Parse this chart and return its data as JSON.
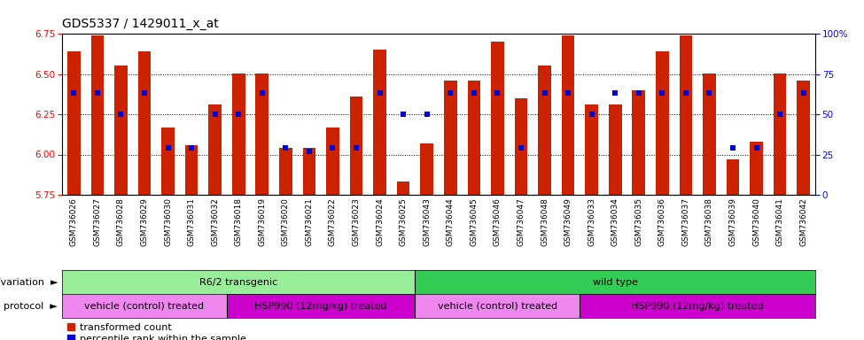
{
  "title": "GDS5337 / 1429011_x_at",
  "samples": [
    "GSM736026",
    "GSM736027",
    "GSM736028",
    "GSM736029",
    "GSM736030",
    "GSM736031",
    "GSM736032",
    "GSM736018",
    "GSM736019",
    "GSM736020",
    "GSM736021",
    "GSM736022",
    "GSM736023",
    "GSM736024",
    "GSM736025",
    "GSM736043",
    "GSM736044",
    "GSM736045",
    "GSM736046",
    "GSM736047",
    "GSM736048",
    "GSM736049",
    "GSM736033",
    "GSM736034",
    "GSM736035",
    "GSM736036",
    "GSM736037",
    "GSM736038",
    "GSM736039",
    "GSM736040",
    "GSM736041",
    "GSM736042"
  ],
  "transformed_count": [
    6.64,
    6.74,
    6.55,
    6.64,
    6.17,
    6.06,
    6.31,
    6.5,
    6.5,
    6.04,
    6.04,
    6.17,
    6.36,
    6.65,
    5.83,
    6.07,
    6.46,
    6.46,
    6.7,
    6.35,
    6.55,
    6.74,
    6.31,
    6.31,
    6.4,
    6.64,
    6.74,
    6.5,
    5.97,
    6.08,
    6.5,
    6.46
  ],
  "percentile_rank": [
    63,
    63,
    50,
    63,
    29,
    29,
    50,
    50,
    63,
    29,
    27,
    29,
    29,
    63,
    50,
    50,
    63,
    63,
    63,
    29,
    63,
    63,
    50,
    63,
    63,
    63,
    63,
    63,
    29,
    29,
    50,
    63
  ],
  "ymin": 5.75,
  "ymax": 6.75,
  "yticks": [
    5.75,
    6.0,
    6.25,
    6.5,
    6.75
  ],
  "y2min": 0,
  "y2max": 100,
  "y2ticks": [
    0,
    25,
    50,
    75,
    100
  ],
  "bar_color": "#CC2200",
  "marker_color": "#0000CC",
  "background_color": "#ffffff",
  "genotype_groups": [
    {
      "label": "R6/2 transgenic",
      "start": 0,
      "end": 15,
      "color": "#99EE99"
    },
    {
      "label": "wild type",
      "start": 15,
      "end": 32,
      "color": "#33CC55"
    }
  ],
  "protocol_groups": [
    {
      "label": "vehicle (control) treated",
      "start": 0,
      "end": 7,
      "color": "#EE88EE"
    },
    {
      "label": "HSP990 (12mg/kg) treated",
      "start": 7,
      "end": 15,
      "color": "#CC00CC"
    },
    {
      "label": "vehicle (control) treated",
      "start": 15,
      "end": 22,
      "color": "#EE88EE"
    },
    {
      "label": "HSP990 (12mg/kg) treated",
      "start": 22,
      "end": 32,
      "color": "#CC00CC"
    }
  ],
  "title_fontsize": 10,
  "tick_fontsize": 6.5,
  "label_fontsize": 8,
  "ann_fontsize": 8,
  "row_label_fontsize": 8
}
